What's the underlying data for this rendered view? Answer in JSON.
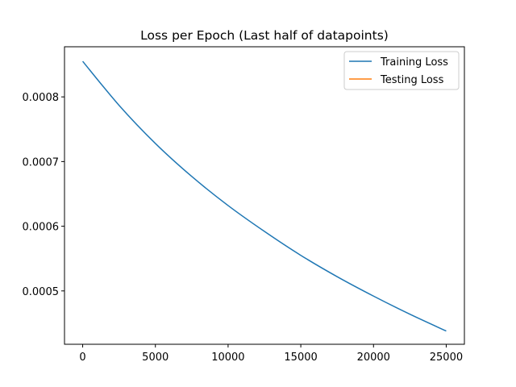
{
  "chart_data": {
    "type": "line",
    "title": "Loss per Epoch (Last half of datapoints)",
    "xlabel": "",
    "ylabel": "",
    "xlim": [
      -1250,
      26250
    ],
    "ylim": [
      0.0004175,
      0.0008775
    ],
    "x_ticks": [
      0,
      5000,
      10000,
      15000,
      20000,
      25000
    ],
    "x_tick_labels": [
      "0",
      "5000",
      "10000",
      "15000",
      "20000",
      "25000"
    ],
    "y_ticks": [
      0.0005,
      0.0006,
      0.0007,
      0.0008
    ],
    "y_tick_labels": [
      "0.0005",
      "0.0006",
      "0.0007",
      "0.0008"
    ],
    "grid": false,
    "legend_position": "top-right",
    "series": [
      {
        "name": "Training Loss",
        "color": "#1f77b4",
        "x": [
          0,
          2500,
          5000,
          7500,
          10000,
          12500,
          15000,
          17500,
          20000,
          22500,
          25000
        ],
        "y": [
          0.000855,
          0.000787,
          0.000728,
          0.000677,
          0.000632,
          0.000592,
          0.000555,
          0.000522,
          0.000492,
          0.000464,
          0.000438
        ]
      },
      {
        "name": "Testing Loss",
        "color": "#ff7f0e",
        "x": [],
        "y": []
      }
    ]
  }
}
